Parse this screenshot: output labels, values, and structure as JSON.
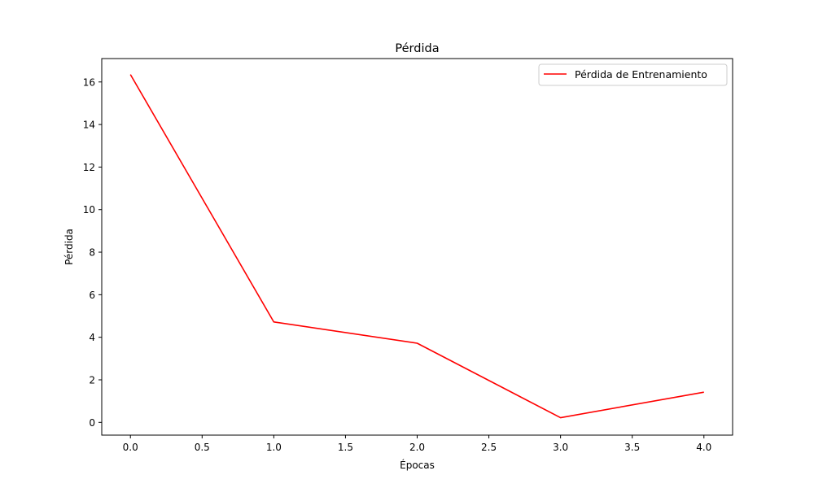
{
  "chart_data": {
    "type": "line",
    "title": "Pérdida",
    "xlabel": "Épocas",
    "ylabel": "Pérdida",
    "x": [
      0,
      1,
      2,
      3,
      4
    ],
    "series": [
      {
        "name": "Pérdida de Entrenamiento",
        "values": [
          16.35,
          4.72,
          3.72,
          0.22,
          1.42
        ],
        "color": "#ff0000"
      }
    ],
    "xlim": [
      -0.2,
      4.2
    ],
    "ylim": [
      -0.6,
      17.1
    ],
    "x_ticks": [
      0.0,
      0.5,
      1.0,
      1.5,
      2.0,
      2.5,
      3.0,
      3.5,
      4.0
    ],
    "x_tick_labels": [
      "0.0",
      "0.5",
      "1.0",
      "1.5",
      "2.0",
      "2.5",
      "3.0",
      "3.5",
      "4.0"
    ],
    "y_ticks": [
      0,
      2,
      4,
      6,
      8,
      10,
      12,
      14,
      16
    ],
    "y_tick_labels": [
      "0",
      "2",
      "4",
      "6",
      "8",
      "10",
      "12",
      "14",
      "16"
    ],
    "grid": false,
    "legend_position": "top-right"
  }
}
